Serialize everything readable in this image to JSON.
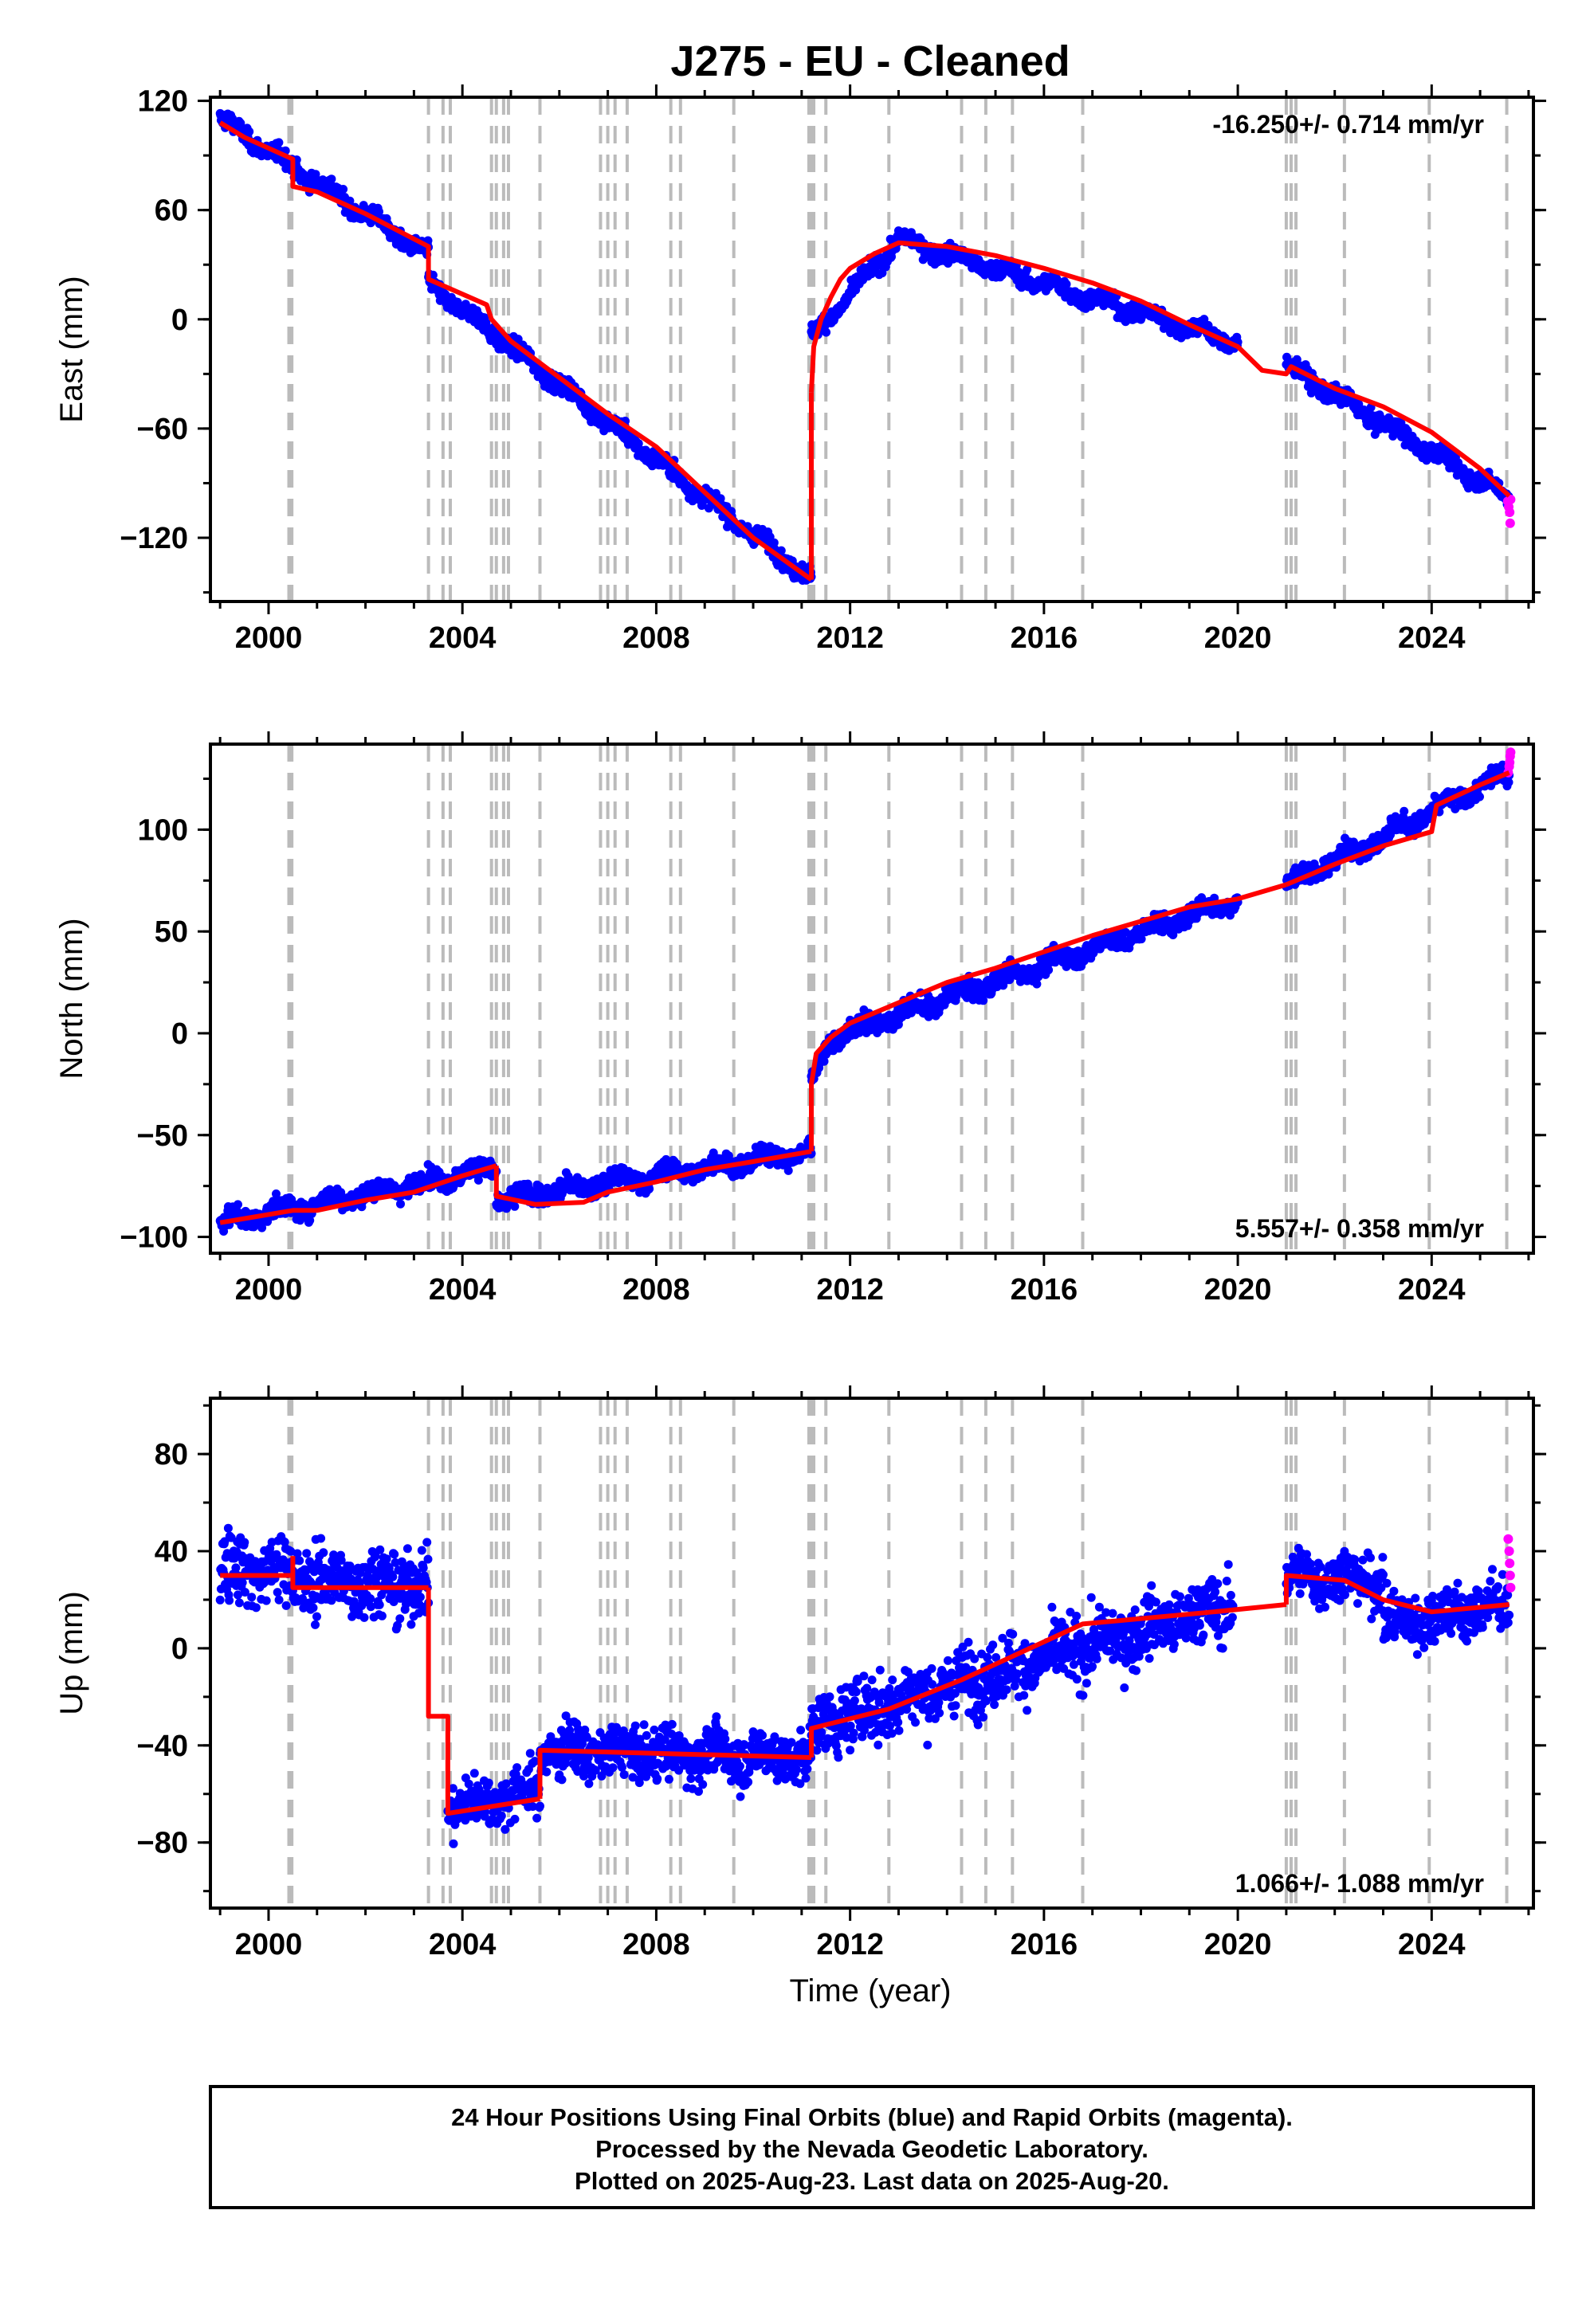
{
  "title": "J275  - EU - Cleaned",
  "xlabel": "Time (year)",
  "x_ticks": [
    2000,
    2004,
    2008,
    2012,
    2016,
    2020,
    2024
  ],
  "x_range": [
    1998.8,
    2026.1
  ],
  "colors": {
    "final_orbits": "#0000ff",
    "rapid_orbits": "#ff00ff",
    "model": "#ff0000",
    "event_lines": "#bbbbbb"
  },
  "event_epochs": [
    2000.42,
    2000.48,
    2003.3,
    2003.6,
    2003.75,
    2004.6,
    2004.7,
    2004.85,
    2004.95,
    2005.6,
    2006.85,
    2007.0,
    2007.15,
    2007.4,
    2008.3,
    2008.5,
    2009.6,
    2011.15,
    2011.2,
    2011.25,
    2011.5,
    2012.8,
    2014.3,
    2014.8,
    2015.35,
    2016.8,
    2021.0,
    2021.1,
    2021.2,
    2022.2,
    2023.95,
    2025.55
  ],
  "caption": {
    "line1": "24 Hour Positions Using Final Orbits (blue) and Rapid Orbits (magenta).",
    "line2": "Processed by the Nevada Geodetic Laboratory.",
    "line3": "Plotted on 2025-Aug-23. Last data on 2025-Aug-20."
  },
  "chart_data": [
    {
      "type": "scatter",
      "component": "east",
      "ylabel": "East (mm)",
      "rate_text": "-16.250+/- 0.714 mm/yr",
      "rate_position": "top-right",
      "ylim": [
        -155,
        122
      ],
      "y_ticks": [
        120,
        60,
        0,
        -60,
        -120
      ],
      "model_segments": [
        {
          "x": [
            1999.0,
            1999.5,
            2000.5,
            2000.5,
            2001.0,
            2002.0,
            2003.3,
            2003.3,
            2004.5,
            2004.6,
            2005.0,
            2006.0,
            2007.0,
            2008.0,
            2009.0,
            2010.0,
            2011.2
          ],
          "y": [
            108,
            100,
            88,
            73,
            70,
            58,
            40,
            22,
            8,
            0,
            -12,
            -32,
            -52,
            -70,
            -95,
            -120,
            -143
          ]
        },
        {
          "x": [
            2011.2,
            2011.2
          ],
          "y": [
            -143,
            -40
          ]
        },
        {
          "x": [
            2011.2,
            2011.25,
            2011.4,
            2011.6,
            2011.8,
            2012.0,
            2012.5,
            2013.0,
            2014.0,
            2015.0,
            2016.0,
            2017.0,
            2018.0,
            2019.0,
            2020.0,
            2020.5,
            2021.0,
            2021.1,
            2022.0,
            2023.0,
            2024.0,
            2025.0,
            2025.6
          ],
          "y": [
            -40,
            -15,
            0,
            12,
            22,
            28,
            36,
            42,
            40,
            35,
            28,
            20,
            10,
            -3,
            -15,
            -28,
            -30,
            -26,
            -38,
            -48,
            -62,
            -82,
            -97
          ]
        }
      ],
      "final_segments": [
        {
          "x": [
            1999.0,
            2003.3
          ],
          "y_start": 110,
          "y_end": 35,
          "scatter": 4
        },
        {
          "x": [
            2003.3,
            2011.2
          ],
          "y_start": 20,
          "y_end": -143,
          "scatter": 4
        },
        {
          "x": [
            2011.2,
            2013.0
          ],
          "y_start": -10,
          "y_end": 44,
          "scatter": 4
        },
        {
          "x": [
            2013.0,
            2020.0
          ],
          "y_start": 44,
          "y_end": -13,
          "scatter": 4
        },
        {
          "x": [
            2021.0,
            2025.6
          ],
          "y_start": -26,
          "y_end": -98,
          "scatter": 4
        }
      ],
      "rapid_points": {
        "x": [
          2025.57,
          2025.59,
          2025.61,
          2025.62,
          2025.63
        ],
        "y": [
          -100,
          -103,
          -106,
          -112,
          -99
        ]
      }
    },
    {
      "type": "scatter",
      "component": "north",
      "ylabel": "North (mm)",
      "rate_text": "5.557+/- 0.358 mm/yr",
      "rate_position": "bottom-right",
      "ylim": [
        -108,
        142
      ],
      "y_ticks": [
        100,
        50,
        0,
        -50,
        -100
      ],
      "model_segments": [
        {
          "x": [
            1999.0,
            2000.5,
            2001.0,
            2002.0,
            2003.0,
            2004.0,
            2004.7
          ],
          "y": [
            -93,
            -87,
            -87,
            -82,
            -78,
            -70,
            -65
          ]
        },
        {
          "x": [
            2004.7,
            2004.7,
            2005.5,
            2006.5,
            2007.0,
            2008.0,
            2009.0,
            2010.0,
            2011.2
          ],
          "y": [
            -65,
            -80,
            -84,
            -83,
            -78,
            -73,
            -67,
            -63,
            -58
          ]
        },
        {
          "x": [
            2011.2,
            2011.2,
            2011.3,
            2011.6,
            2012.0,
            2013.0,
            2014.0,
            2015.0,
            2016.0,
            2017.0,
            2018.0,
            2019.0,
            2020.0,
            2021.0
          ],
          "y": [
            -58,
            -25,
            -10,
            -2,
            5,
            15,
            25,
            32,
            40,
            48,
            55,
            62,
            66,
            73
          ]
        },
        {
          "x": [
            2021.0,
            2022.0,
            2023.0,
            2024.0,
            2024.1,
            2025.0,
            2025.6
          ],
          "y": [
            73,
            83,
            92,
            99,
            112,
            122,
            128
          ]
        }
      ],
      "final_segments": [
        {
          "x": [
            1999.0,
            2004.7
          ],
          "y_start": -93,
          "y_end": -66,
          "scatter": 4
        },
        {
          "x": [
            2004.7,
            2011.2
          ],
          "y_start": -82,
          "y_end": -58,
          "scatter": 4
        },
        {
          "x": [
            2011.2,
            2011.6
          ],
          "y_start": -25,
          "y_end": -2,
          "scatter": 3
        },
        {
          "x": [
            2011.6,
            2020.0
          ],
          "y_start": -2,
          "y_end": 66,
          "scatter": 4
        },
        {
          "x": [
            2021.0,
            2025.6
          ],
          "y_start": 73,
          "y_end": 128,
          "scatter": 4
        }
      ],
      "rapid_points": {
        "x": [
          2025.58,
          2025.6,
          2025.61,
          2025.62,
          2025.63
        ],
        "y": [
          128,
          131,
          133,
          136,
          138
        ]
      }
    },
    {
      "type": "scatter",
      "component": "up",
      "ylabel": "Up (mm)",
      "rate_text": "1.066+/- 1.088 mm/yr",
      "rate_position": "bottom-right",
      "ylim": [
        -107,
        103
      ],
      "y_ticks": [
        80,
        40,
        0,
        -40,
        -80
      ],
      "model_segments": [
        {
          "x": [
            1999.0,
            2000.5
          ],
          "y": [
            30,
            30
          ]
        },
        {
          "x": [
            2000.5,
            2000.5,
            2003.3
          ],
          "y": [
            38,
            25,
            25
          ]
        },
        {
          "x": [
            2003.3,
            2003.3,
            2003.7,
            2003.7,
            2005.6
          ],
          "y": [
            25,
            -28,
            -28,
            -68,
            -62
          ]
        },
        {
          "x": [
            2005.6,
            2005.6,
            2011.2
          ],
          "y": [
            -62,
            -42,
            -45
          ]
        },
        {
          "x": [
            2011.2,
            2011.2,
            2012.8,
            2014.3,
            2016.8,
            2019.5,
            2021.0
          ],
          "y": [
            -45,
            -33,
            -25,
            -13,
            10,
            15,
            18
          ]
        },
        {
          "x": [
            2021.0,
            2021.0,
            2022.2,
            2023.0,
            2024.0,
            2025.6
          ],
          "y": [
            18,
            30,
            28,
            20,
            15,
            18
          ]
        }
      ],
      "final_segments": [
        {
          "x": [
            1999.0,
            2000.5
          ],
          "y_start": 33,
          "y_end": 32,
          "scatter": 12
        },
        {
          "x": [
            2000.5,
            2003.3
          ],
          "y_start": 28,
          "y_end": 26,
          "scatter": 12
        },
        {
          "x": [
            2003.7,
            2005.6
          ],
          "y_start": -66,
          "y_end": -58,
          "scatter": 9
        },
        {
          "x": [
            2005.6,
            2011.2
          ],
          "y_start": -42,
          "y_end": -45,
          "scatter": 9
        },
        {
          "x": [
            2011.2,
            2019.9
          ],
          "y_start": -32,
          "y_end": 18,
          "scatter": 11
        },
        {
          "x": [
            2021.0,
            2023.0
          ],
          "y_start": 30,
          "y_end": 28,
          "scatter": 9
        },
        {
          "x": [
            2023.0,
            2025.6
          ],
          "y_start": 10,
          "y_end": 18,
          "scatter": 10
        }
      ],
      "rapid_points": {
        "x": [
          2025.58,
          2025.6,
          2025.61,
          2025.62,
          2025.63
        ],
        "y": [
          45,
          40,
          35,
          30,
          25
        ]
      }
    }
  ]
}
